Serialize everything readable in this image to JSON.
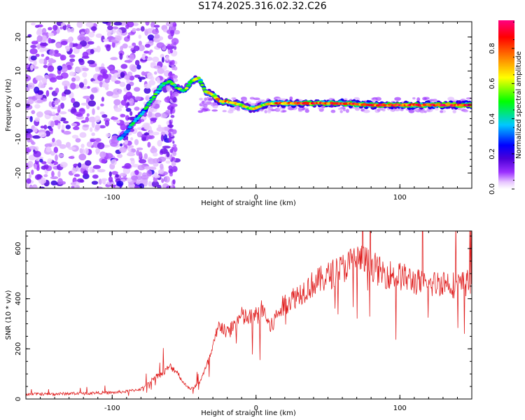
{
  "page_title": "S174.2025.316.02.32.C26",
  "chart_data": [
    {
      "type": "heatmap",
      "title": "S174.2025.316.02.32.C26",
      "xlabel": "Height of straight line (km)",
      "ylabel": "Frequency (Hz)",
      "xlim": [
        -160,
        150
      ],
      "ylim": [
        -24.5,
        24.5
      ],
      "xticks": [
        -100,
        0,
        100
      ],
      "yticks": [
        -20,
        -10,
        0,
        10,
        20
      ],
      "colorbar": {
        "label": "Normalized spectral amplitude",
        "range": [
          0,
          0.96
        ],
        "ticks": [
          0.0,
          0.2,
          0.4,
          0.6,
          0.8
        ],
        "colormap": [
          "#ffffff",
          "#9b30ff",
          "#4b00d8",
          "#0000ff",
          "#00c8ff",
          "#00ff00",
          "#ffff00",
          "#ff8000",
          "#ff0000",
          "#ff0080"
        ]
      },
      "ridge": {
        "x": [
          -95,
          -90,
          -85,
          -80,
          -75,
          -70,
          -65,
          -60,
          -55,
          -50,
          -45,
          -40,
          -35,
          -30,
          -25,
          -20,
          -15,
          -10,
          -5,
          0,
          5,
          10,
          20,
          40,
          60,
          80,
          100,
          120,
          150
        ],
        "y": [
          -10,
          -8,
          -5,
          -3,
          0,
          3,
          6,
          7,
          5,
          4,
          7,
          8,
          4,
          3,
          1,
          1,
          0.5,
          0,
          -1,
          -1,
          0,
          0.5,
          0.5,
          0.5,
          0.5,
          0,
          0,
          0,
          0
        ],
        "amplitude": [
          0.4,
          0.4,
          0.45,
          0.45,
          0.5,
          0.5,
          0.5,
          0.5,
          0.55,
          0.55,
          0.6,
          0.6,
          0.65,
          0.7,
          0.8,
          0.8,
          0.75,
          0.7,
          0.65,
          0.65,
          0.7,
          0.75,
          0.8,
          0.85,
          0.85,
          0.9,
          0.9,
          0.9,
          0.9
        ]
      }
    },
    {
      "type": "line",
      "xlabel": "Height of straight line (km)",
      "ylabel": "SNR (10 * v/v)",
      "xlim": [
        -160,
        150
      ],
      "ylim": [
        0,
        670
      ],
      "xticks": [
        -100,
        0,
        100
      ],
      "yticks": [
        0,
        200,
        400,
        600
      ],
      "series": [
        {
          "name": "SNR",
          "color": "#e02020",
          "x": [
            -160,
            -150,
            -140,
            -130,
            -120,
            -110,
            -100,
            -90,
            -80,
            -75,
            -70,
            -65,
            -60,
            -55,
            -50,
            -45,
            -40,
            -35,
            -30,
            -28,
            -25,
            -20,
            -15,
            -10,
            -5,
            0,
            5,
            10,
            15,
            20,
            30,
            40,
            50,
            60,
            70,
            80,
            85,
            90,
            100,
            110,
            120,
            130,
            140,
            150
          ],
          "values": [
            20,
            20,
            20,
            22,
            22,
            25,
            25,
            30,
            40,
            60,
            90,
            100,
            130,
            110,
            60,
            40,
            60,
            120,
            200,
            250,
            300,
            260,
            300,
            330,
            320,
            330,
            360,
            280,
            340,
            380,
            420,
            460,
            490,
            520,
            560,
            540,
            510,
            500,
            490,
            470,
            450,
            470,
            450,
            470
          ]
        }
      ]
    }
  ]
}
